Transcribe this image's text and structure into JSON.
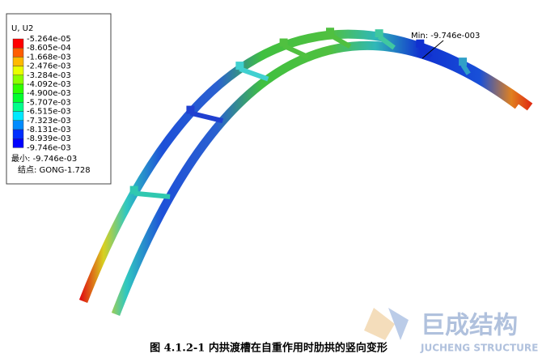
{
  "legend": {
    "title": "U, U2",
    "labels": [
      "-5.264e-05",
      "-8.605e-04",
      "-1.668e-03",
      "-2.476e-03",
      "-3.284e-03",
      "-4.092e-03",
      "-4.900e-03",
      "-5.707e-03",
      "-6.515e-03",
      "-7.323e-03",
      "-8.131e-03",
      "-8.939e-03",
      "-9.746e-03"
    ],
    "min": "最小: -9.746e-03",
    "node": "结点: GONG-1.728"
  },
  "annotation": "Min: -9.746e-003",
  "caption": "图 4.1.2-1  内拱渡槽在自重作用时肋拱的竖向变形",
  "watermark": {
    "name": "巨成结构",
    "subtitle": "JUCHENG STRUCTURE"
  }
}
